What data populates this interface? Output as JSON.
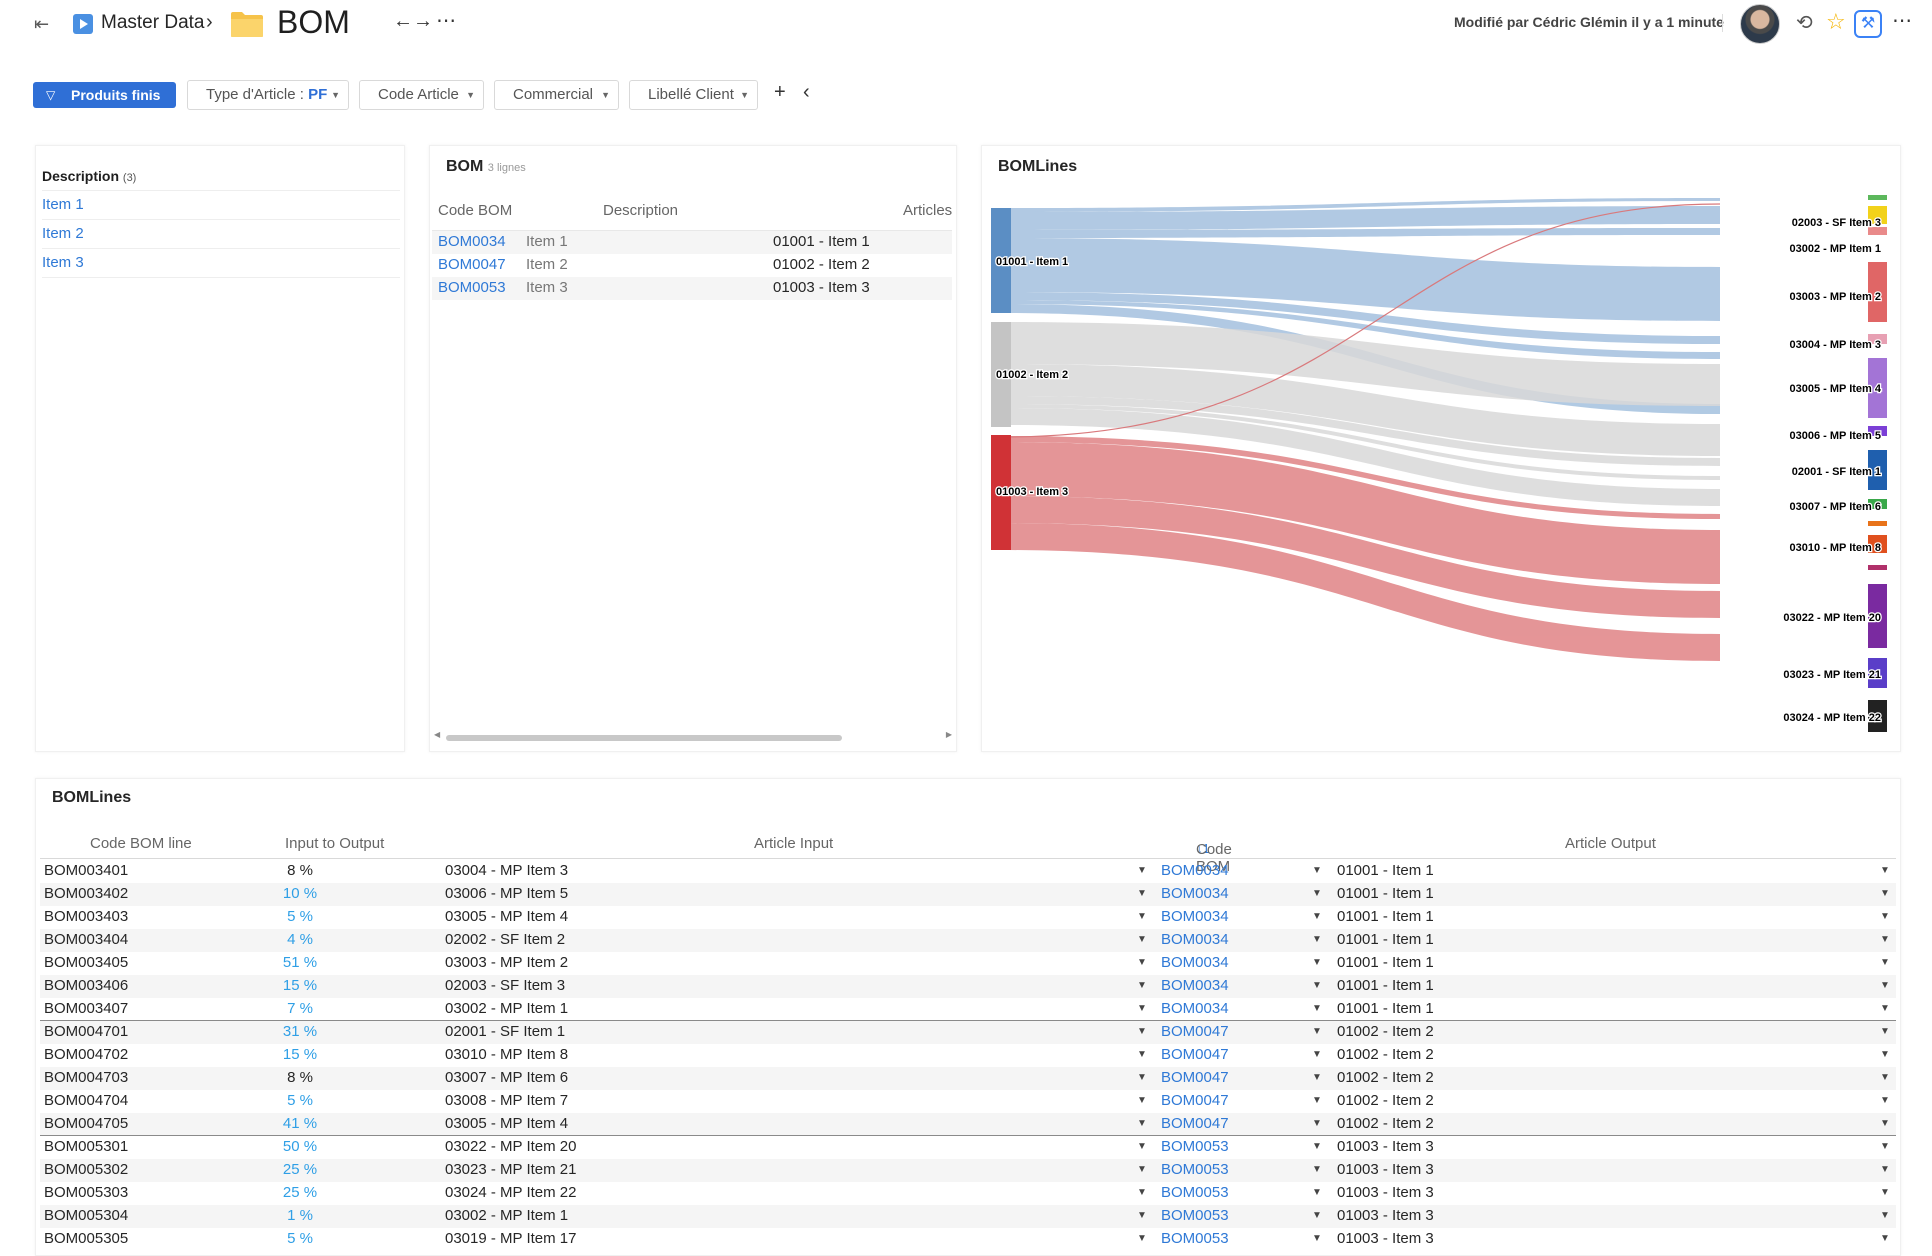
{
  "header": {
    "breadcrumb": "Master Data",
    "title": "BOM",
    "modified": "Modifié par Cédric Glémin il y a 1 minute"
  },
  "filters": {
    "primary": "Produits finis",
    "chips": [
      {
        "label": "Type d'Article : ",
        "value": "PF"
      },
      {
        "label": "Code Article",
        "value": ""
      },
      {
        "label": "Commercial",
        "value": ""
      },
      {
        "label": "Libellé Client",
        "value": ""
      }
    ]
  },
  "description_panel": {
    "header": "Description",
    "count": "(3)",
    "items": [
      "Item 1",
      "Item 2",
      "Item 3"
    ]
  },
  "bom_panel": {
    "title": "BOM",
    "subtitle": "3 lignes",
    "columns": [
      "Code BOM",
      "Description",
      "Articles"
    ],
    "rows": [
      {
        "code": "BOM0034",
        "description": "Item 1",
        "article": "01001 - Item 1"
      },
      {
        "code": "BOM0047",
        "description": "Item 2",
        "article": "01002 - Item 2"
      },
      {
        "code": "BOM0053",
        "description": "Item 3",
        "article": "01003 - Item 3"
      }
    ]
  },
  "sankey_panel": {
    "title": "BOMLines",
    "left_nodes": [
      {
        "label": "01001 - Item 1",
        "color": "#5b8ec4"
      },
      {
        "label": "01002 - Item 2",
        "color": "#c4c4c4"
      },
      {
        "label": "01003 - Item 3",
        "color": "#d03236"
      }
    ],
    "right_nodes": [
      {
        "label": "",
        "color": "#5cb85c"
      },
      {
        "label": "02003 - SF Item 3",
        "color": "#f2d21a"
      },
      {
        "label": "03002 - MP Item 1",
        "color": "#e98a8a"
      },
      {
        "label": "03003 - MP Item 2",
        "color": "#e06666"
      },
      {
        "label": "03004 - MP Item 3",
        "color": "#e7a0b3"
      },
      {
        "label": "03005 - MP Item 4",
        "color": "#a374d6"
      },
      {
        "label": "03006 - MP Item 5",
        "color": "#7b3fd6"
      },
      {
        "label": "02001 - SF Item 1",
        "color": "#1f5fae"
      },
      {
        "label": "03007 - MP Item 6",
        "color": "#3aa84a"
      },
      {
        "label": "",
        "color": "#e8731a"
      },
      {
        "label": "03010 - MP Item 8",
        "color": "#e0501e"
      },
      {
        "label": "",
        "color": "#b0306a"
      },
      {
        "label": "03022 - MP Item 20",
        "color": "#7a2aa0"
      },
      {
        "label": "03023 - MP Item 21",
        "color": "#5a3ec8"
      },
      {
        "label": "03024 - MP Item 22",
        "color": "#222222"
      }
    ]
  },
  "lines_panel": {
    "title": "BOMLines",
    "columns": [
      "Code BOM line",
      "Input to Output",
      "Article Input",
      "Code BOM",
      "Article Output"
    ],
    "rows": [
      {
        "code": "BOM003401",
        "pct": "8 %",
        "link": false,
        "input": "03004 - MP Item 3",
        "bom": "BOM0034",
        "output": "01001 - Item 1",
        "end": false
      },
      {
        "code": "BOM003402",
        "pct": "10 %",
        "link": true,
        "input": "03006 - MP Item 5",
        "bom": "BOM0034",
        "output": "01001 - Item 1",
        "end": false
      },
      {
        "code": "BOM003403",
        "pct": "5 %",
        "link": true,
        "input": "03005 - MP Item 4",
        "bom": "BOM0034",
        "output": "01001 - Item 1",
        "end": false
      },
      {
        "code": "BOM003404",
        "pct": "4 %",
        "link": true,
        "input": "02002 - SF Item 2",
        "bom": "BOM0034",
        "output": "01001 - Item 1",
        "end": false
      },
      {
        "code": "BOM003405",
        "pct": "51 %",
        "link": true,
        "input": "03003 - MP Item 2",
        "bom": "BOM0034",
        "output": "01001 - Item 1",
        "end": false
      },
      {
        "code": "BOM003406",
        "pct": "15 %",
        "link": true,
        "input": "02003 - SF Item 3",
        "bom": "BOM0034",
        "output": "01001 - Item 1",
        "end": false
      },
      {
        "code": "BOM003407",
        "pct": "7 %",
        "link": true,
        "input": "03002 - MP Item 1",
        "bom": "BOM0034",
        "output": "01001 - Item 1",
        "end": true
      },
      {
        "code": "BOM004701",
        "pct": "31 %",
        "link": true,
        "input": "02001 - SF Item 1",
        "bom": "BOM0047",
        "output": "01002 - Item 2",
        "end": false
      },
      {
        "code": "BOM004702",
        "pct": "15 %",
        "link": true,
        "input": "03010 - MP Item 8",
        "bom": "BOM0047",
        "output": "01002 - Item 2",
        "end": false
      },
      {
        "code": "BOM004703",
        "pct": "8 %",
        "link": false,
        "input": "03007 - MP Item 6",
        "bom": "BOM0047",
        "output": "01002 - Item 2",
        "end": false
      },
      {
        "code": "BOM004704",
        "pct": "5 %",
        "link": true,
        "input": "03008 - MP Item 7",
        "bom": "BOM0047",
        "output": "01002 - Item 2",
        "end": false
      },
      {
        "code": "BOM004705",
        "pct": "41 %",
        "link": true,
        "input": "03005 - MP Item 4",
        "bom": "BOM0047",
        "output": "01002 - Item 2",
        "end": true
      },
      {
        "code": "BOM005301",
        "pct": "50 %",
        "link": true,
        "input": "03022 - MP Item 20",
        "bom": "BOM0053",
        "output": "01003 - Item 3",
        "end": false
      },
      {
        "code": "BOM005302",
        "pct": "25 %",
        "link": true,
        "input": "03023 - MP Item 21",
        "bom": "BOM0053",
        "output": "01003 - Item 3",
        "end": false
      },
      {
        "code": "BOM005303",
        "pct": "25 %",
        "link": true,
        "input": "03024 - MP Item 22",
        "bom": "BOM0053",
        "output": "01003 - Item 3",
        "end": false
      },
      {
        "code": "BOM005304",
        "pct": "1 %",
        "link": true,
        "input": "03002 - MP Item 1",
        "bom": "BOM0053",
        "output": "01003 - Item 3",
        "end": false
      },
      {
        "code": "BOM005305",
        "pct": "5 %",
        "link": true,
        "input": "03019 - MP Item 17",
        "bom": "BOM0053",
        "output": "01003 - Item 3",
        "end": false
      }
    ]
  }
}
